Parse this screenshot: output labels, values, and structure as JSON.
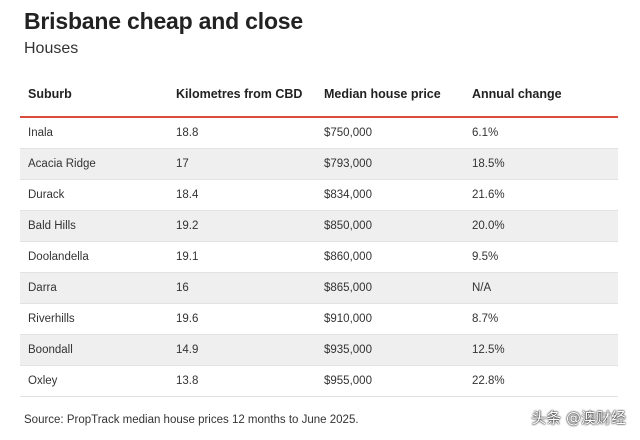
{
  "title": "Brisbane cheap and close",
  "subtitle": "Houses",
  "table": {
    "headers": [
      "Suburb",
      "Kilometres from CBD",
      "Median house price",
      "Annual change"
    ],
    "rows": [
      [
        "Inala",
        "18.8",
        "$750,000",
        "6.1%"
      ],
      [
        "Acacia Ridge",
        "17",
        "$793,000",
        "18.5%"
      ],
      [
        "Durack",
        "18.4",
        "$834,000",
        "21.6%"
      ],
      [
        "Bald Hills",
        "19.2",
        "$850,000",
        "20.0%"
      ],
      [
        "Doolandella",
        "19.1",
        "$860,000",
        "9.5%"
      ],
      [
        "Darra",
        "16",
        "$865,000",
        "N/A"
      ],
      [
        "Riverhills",
        "19.6",
        "$910,000",
        "8.7%"
      ],
      [
        "Boondall",
        "14.9",
        "$935,000",
        "12.5%"
      ],
      [
        "Oxley",
        "13.8",
        "$955,000",
        "22.8%"
      ]
    ]
  },
  "source": "Source: PropTrack median house prices 12 months to June 2025.",
  "watermark": "头条 @澳财经",
  "colors": {
    "accent_rule": "#d94c3c",
    "stripe": "#efefef"
  }
}
